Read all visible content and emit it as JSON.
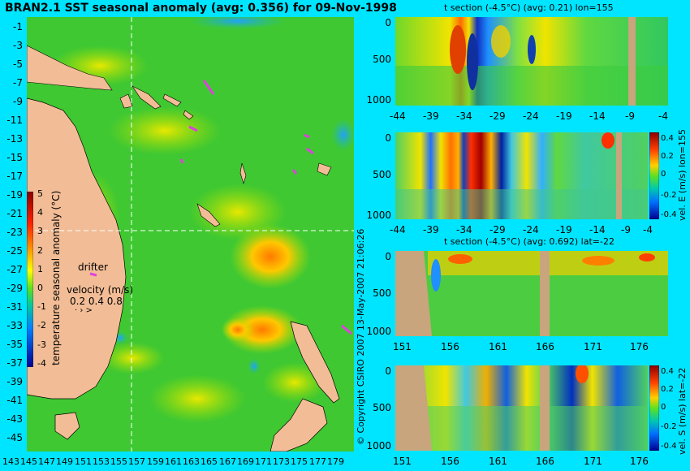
{
  "map": {
    "title": "BRAN2.1 SST seasonal anomaly (avg: 0.356) for 09-Nov-1998",
    "lat_labels": [
      "-1",
      "-3",
      "-5",
      "-7",
      "-9",
      "-11",
      "-13",
      "-15",
      "-17",
      "-19",
      "-21",
      "-23",
      "-25",
      "-27",
      "-29",
      "-31",
      "-33",
      "-35",
      "-37",
      "-39",
      "-41",
      "-43",
      "-45"
    ],
    "lon_labels": [
      "143",
      "145",
      "147",
      "149",
      "151",
      "153",
      "155",
      "157",
      "159",
      "161",
      "163",
      "165",
      "167",
      "169",
      "171",
      "173",
      "175",
      "177",
      "179"
    ],
    "colorbar_ticks": [
      "5",
      "4",
      "3",
      "2",
      "1",
      "0",
      "-1",
      "-2",
      "-3",
      "-4"
    ],
    "colorbar_label": "temperature seasonal anomaly (°C)",
    "drifter_label": "drifter",
    "velocity_title": "velocity (m/s)",
    "velocity_values": "0.2 0.4 0.8",
    "copyright": "© Copyright CSIRO 2007  13-May-2007 21:06:26"
  },
  "sections": [
    {
      "title": "t section (-4.5°C) (avg: 0.21) lon=155",
      "y_ticks": [
        "0",
        "500",
        "1000"
      ],
      "x_ticks": [
        "-44",
        "-39",
        "-34",
        "-29",
        "-24",
        "-19",
        "-14",
        "-9",
        "-4"
      ]
    },
    {
      "title": "",
      "y_ticks": [
        "0",
        "500",
        "1000"
      ],
      "x_ticks": [
        "-44",
        "-39",
        "-34",
        "-29",
        "-24",
        "-19",
        "-14",
        "-9",
        "-4"
      ],
      "cbar_label": "vel. E (m/s) lon=155",
      "cbar_ticks": [
        "0.4",
        "0.2",
        "0",
        "-0.2",
        "-0.4"
      ]
    },
    {
      "title": "t section (-4.5°C) (avg: 0.692) lat=-22",
      "y_ticks": [
        "0",
        "500",
        "1000"
      ],
      "x_ticks": [
        "151",
        "156",
        "161",
        "166",
        "171",
        "176"
      ]
    },
    {
      "title": "",
      "y_ticks": [
        "0",
        "500",
        "1000"
      ],
      "x_ticks": [
        "151",
        "156",
        "161",
        "166",
        "171",
        "176"
      ],
      "cbar_label": "vel. S (m/s) lat=-22",
      "cbar_ticks": [
        "0.4",
        "0.2",
        "0",
        "-0.2",
        "-0.4"
      ]
    }
  ],
  "colors": {
    "ocean": "#44cc22",
    "land": "#f2bd96",
    "bathy": "#c8a57d",
    "highlight": "#e040e0"
  }
}
